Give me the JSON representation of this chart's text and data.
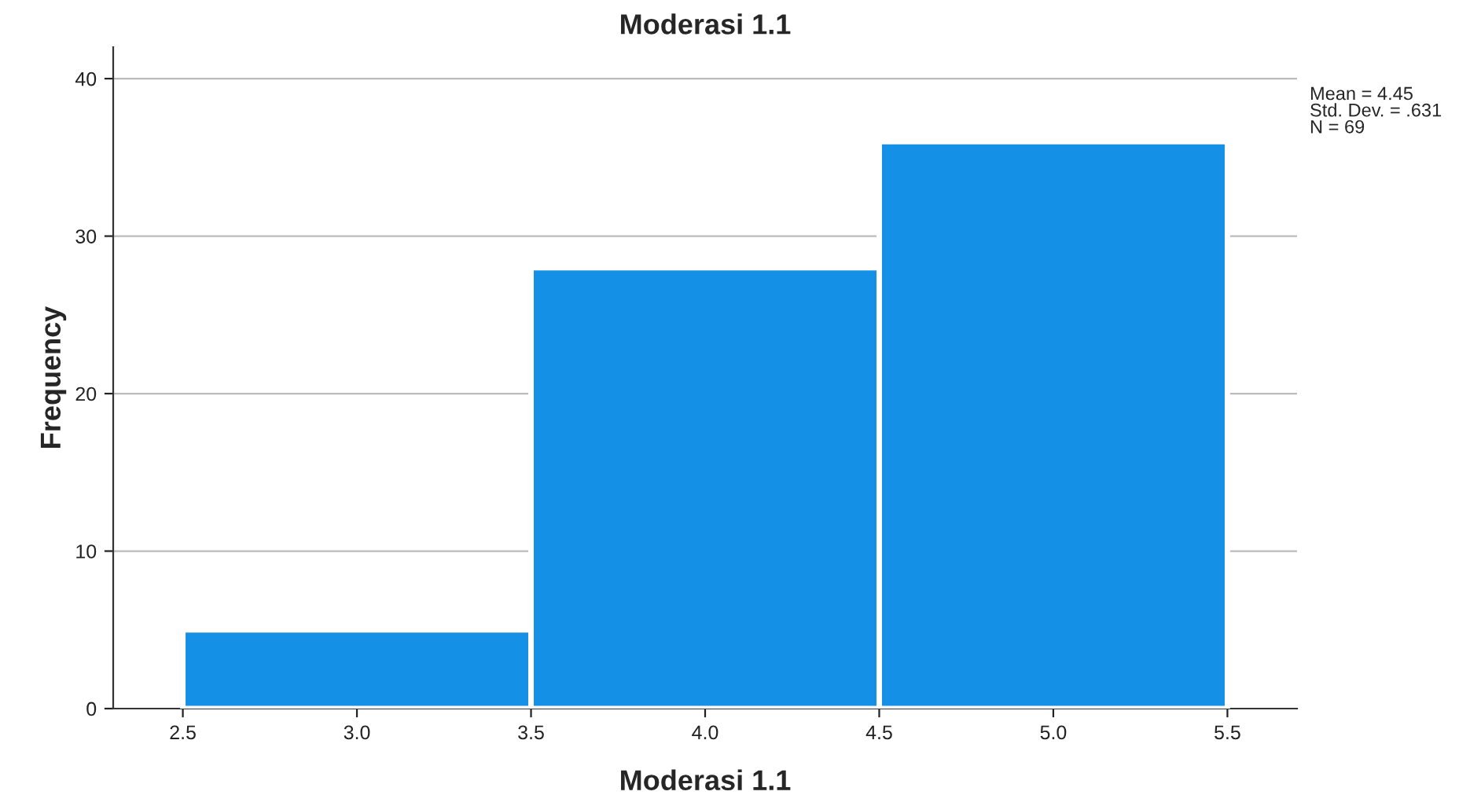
{
  "chart_data": {
    "type": "histogram",
    "title": "Moderasi 1.1",
    "xlabel": "Moderasi 1.1",
    "ylabel": "Frequency",
    "bins": [
      2.5,
      3.5,
      4.5,
      5.5
    ],
    "values": [
      5,
      28,
      36
    ],
    "color": "#1490e6",
    "xlim": [
      2.3,
      5.7
    ],
    "xticks": [
      2.5,
      {
        "value": 3,
        "label": "3.0"
      },
      3.5,
      {
        "value": 4,
        "label": "4.0"
      },
      4.5,
      {
        "value": 5,
        "label": "5.0"
      },
      5.5
    ],
    "ylim": [
      0,
      42
    ],
    "yticks": [
      0,
      10,
      20,
      30,
      40
    ],
    "grid": "y",
    "legend": false,
    "annotations": [
      "Mean = 4.45\nStd. Dev. = .631\nN = 69"
    ]
  }
}
